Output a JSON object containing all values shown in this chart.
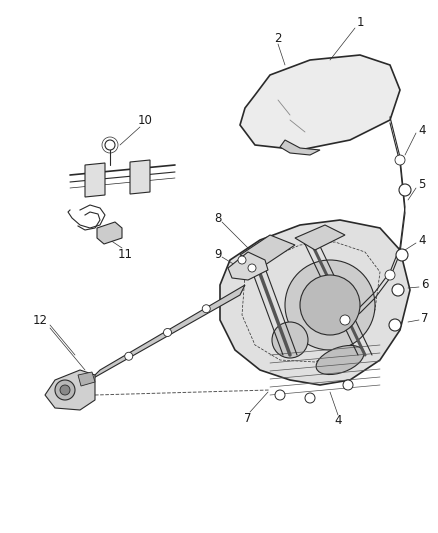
{
  "bg_color": "#ffffff",
  "line_color": "#2a2a2a",
  "label_color": "#1a1a1a",
  "font_size": 8.5,
  "fig_width": 4.38,
  "fig_height": 5.33,
  "dpi": 100
}
